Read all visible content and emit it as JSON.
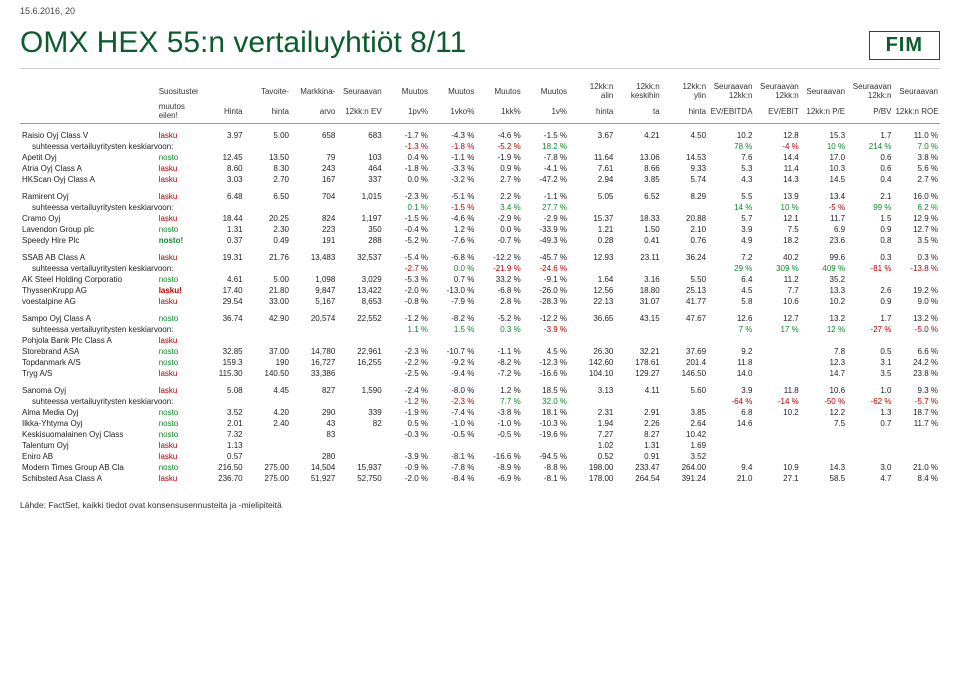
{
  "meta": {
    "date": "15.6.2016, 20"
  },
  "header": {
    "title": "OMX HEX 55:n vertailuyhtiöt 8/11",
    "logo": "FIM"
  },
  "footer": "Lähde: FactSet, kaikki tiedot ovat konsensusennusteita ja -mielipiteitä",
  "columns": {
    "row1": [
      "",
      "Suositusten",
      "",
      "Tavoite-",
      "Markkina-",
      "Seuraavan",
      "Muutos",
      "Muutos",
      "Muutos",
      "Muutos",
      "12kk:n\nalin",
      "12kk:n\nkeskihin",
      "12kk:n\nylin",
      "Seuraavan\n12kk:n",
      "Seuraavan\n12kk:n",
      "Seuraavan",
      "Seuraavan\n12kk:n",
      "Seuraavan"
    ],
    "row2": [
      "",
      "muutos\neilen!",
      "Hinta",
      "hinta",
      "arvo",
      "12kk:n EV",
      "1pv%",
      "1vko%",
      "1kk%",
      "1v%",
      "hinta",
      "ta",
      "hinta",
      "EV/EBITDA",
      "EV/EBIT",
      "12kk:n P/E",
      "P/BV",
      "12kk:n ROE"
    ]
  },
  "avg_label": "suhteessa vertailuyritysten keskiarvoon:",
  "groups": [
    {
      "rows": [
        {
          "name": "Raisio Oyj Class V",
          "rec": "lasku",
          "cls": "lasku",
          "v": [
            "3.97",
            "5.00",
            "658",
            "683",
            "-1.7 %",
            "-4.3 %",
            "-4.6 %",
            "-1.5 %",
            "3.67",
            "4.21",
            "4.50",
            "10.2",
            "12.8",
            "15.3",
            "1.7",
            "11.0 %"
          ]
        },
        {
          "avg": true,
          "v": [
            "",
            "",
            "",
            "",
            "-1.3 %",
            "-1.8 %",
            "-5.2 %",
            "18.2 %",
            "",
            "",
            "",
            "78 %",
            "-4 %",
            "10 %",
            "214 %",
            "7.0 %"
          ],
          "neg": [
            4,
            5,
            6,
            12
          ]
        },
        {
          "name": "Apetit Oyj",
          "rec": "nosto",
          "cls": "nosto",
          "v": [
            "12.45",
            "13.50",
            "79",
            "103",
            "0.4 %",
            "-1.1 %",
            "-1.9 %",
            "-7.8 %",
            "11.64",
            "13.06",
            "14.53",
            "7.6",
            "14.4",
            "17.0",
            "0.6",
            "3.8 %"
          ]
        },
        {
          "name": "Atria Oyj Class A",
          "rec": "lasku",
          "cls": "lasku",
          "v": [
            "8.60",
            "8.30",
            "243",
            "464",
            "-1.8 %",
            "-3.3 %",
            "0.9 %",
            "-4.1 %",
            "7.61",
            "8.66",
            "9.33",
            "5.3",
            "11.4",
            "10.3",
            "0.6",
            "5.6 %"
          ]
        },
        {
          "name": "HKScan Oyj Class A",
          "rec": "lasku",
          "cls": "lasku",
          "v": [
            "3.03",
            "2.70",
            "167",
            "337",
            "0.0 %",
            "-3.2 %",
            "2.7 %",
            "-47.2 %",
            "2.94",
            "3.85",
            "5.74",
            "4.3",
            "14.3",
            "14.5",
            "0.4",
            "2.7 %"
          ]
        }
      ]
    },
    {
      "rows": [
        {
          "name": "Ramirent Oyj",
          "rec": "lasku",
          "cls": "lasku",
          "v": [
            "6.48",
            "6.50",
            "704",
            "1,015",
            "-2.3 %",
            "-5.1 %",
            "2.2 %",
            "-1.1 %",
            "5.05",
            "6.52",
            "8.29",
            "5.5",
            "13.9",
            "13.4",
            "2.1",
            "16.0 %"
          ]
        },
        {
          "avg": true,
          "v": [
            "",
            "",
            "",
            "",
            "0.1 %",
            "-1.5 %",
            "3.4 %",
            "27.7 %",
            "",
            "",
            "",
            "14 %",
            "10 %",
            "-5 %",
            "99 %",
            "6.2 %"
          ],
          "neg": [
            5,
            13
          ]
        },
        {
          "name": "Cramo Oyj",
          "rec": "lasku",
          "cls": "lasku",
          "v": [
            "18.44",
            "20.25",
            "824",
            "1,197",
            "-1.5 %",
            "-4.6 %",
            "-2.9 %",
            "-2.9 %",
            "15.37",
            "18.33",
            "20.88",
            "5.7",
            "12.1",
            "11.7",
            "1.5",
            "12.9 %"
          ]
        },
        {
          "name": "Lavendon Group plc",
          "rec": "nosto",
          "cls": "nosto",
          "v": [
            "1.31",
            "2.30",
            "223",
            "350",
            "-0.4 %",
            "1.2 %",
            "0.0 %",
            "-33.9 %",
            "1.21",
            "1.50",
            "2.10",
            "3.9",
            "7.5",
            "6.9",
            "0.9",
            "12.7 %"
          ]
        },
        {
          "name": "Speedy Hire Plc",
          "rec": "nosto!",
          "cls": "nosto2",
          "v": [
            "0.37",
            "0.49",
            "191",
            "288",
            "-5.2 %",
            "-7.6 %",
            "-0.7 %",
            "-49.3 %",
            "0.28",
            "0.41",
            "0.76",
            "4.9",
            "18.2",
            "23.6",
            "0.8",
            "3.5 %"
          ]
        }
      ]
    },
    {
      "rows": [
        {
          "name": "SSAB AB Class A",
          "rec": "lasku",
          "cls": "lasku",
          "v": [
            "19.31",
            "21.76",
            "13,483",
            "32,537",
            "-5.4 %",
            "-6.8 %",
            "-12.2 %",
            "-45.7 %",
            "12.93",
            "23.11",
            "36.24",
            "7.2",
            "40.2",
            "99.6",
            "0.3",
            "0.3 %"
          ]
        },
        {
          "avg": true,
          "v": [
            "",
            "",
            "",
            "",
            "-2.7 %",
            "0.0 %",
            "-21.9 %",
            "-24.6 %",
            "",
            "",
            "",
            "29 %",
            "309 %",
            "409 %",
            "-81 %",
            "-13.8 %"
          ],
          "neg": [
            4,
            6,
            7,
            14,
            15
          ]
        },
        {
          "name": "AK Steel Holding Corporatio",
          "rec": "nosto",
          "cls": "nosto",
          "v": [
            "4.61",
            "5.00",
            "1,098",
            "3,029",
            "-5.3 %",
            "0.7 %",
            "33.2 %",
            "-9.1 %",
            "1.64",
            "3.16",
            "5.50",
            "6.4",
            "11.2",
            "35.2",
            "",
            ""
          ]
        },
        {
          "name": "ThyssenKrupp AG",
          "rec": "lasku!",
          "cls": "lasku2",
          "v": [
            "17.40",
            "21.80",
            "9,847",
            "13,422",
            "-2.0 %",
            "-13.0 %",
            "-6.8 %",
            "-26.0 %",
            "12.56",
            "18.80",
            "25.13",
            "4.5",
            "7.7",
            "13.3",
            "2.6",
            "19.2 %"
          ]
        },
        {
          "name": "voestalpine AG",
          "rec": "lasku",
          "cls": "lasku",
          "v": [
            "29.54",
            "33.00",
            "5,167",
            "8,653",
            "-0.8 %",
            "-7.9 %",
            "2.8 %",
            "-28.3 %",
            "22.13",
            "31.07",
            "41.77",
            "5.8",
            "10.6",
            "10.2",
            "0.9",
            "9.0 %"
          ]
        }
      ]
    },
    {
      "rows": [
        {
          "name": "Sampo Oyj Class A",
          "rec": "nosto",
          "cls": "nosto",
          "v": [
            "36.74",
            "42.90",
            "20,574",
            "22,552",
            "-1.2 %",
            "-8.2 %",
            "-5.2 %",
            "-12.2 %",
            "36.65",
            "43.15",
            "47.67",
            "12.6",
            "12.7",
            "13.2",
            "1.7",
            "13.2 %"
          ]
        },
        {
          "avg": true,
          "v": [
            "",
            "",
            "",
            "",
            "1.1 %",
            "1.5 %",
            "0.3 %",
            "-3.9 %",
            "",
            "",
            "",
            "7 %",
            "17 %",
            "12 %",
            "-27 %",
            "-5.0 %"
          ],
          "neg": [
            7,
            14,
            15
          ]
        },
        {
          "name": "Pohjola Bank Plc Class A",
          "rec": "lasku",
          "cls": "lasku",
          "v": [
            "",
            "",
            "",
            "",
            "",
            "",
            "",
            "",
            "",
            "",
            "",
            "",
            "",
            "",
            "",
            ""
          ]
        },
        {
          "name": "Storebrand ASA",
          "rec": "nosto",
          "cls": "nosto",
          "v": [
            "32.85",
            "37.00",
            "14,780",
            "22,961",
            "-2.3 %",
            "-10.7 %",
            "-1.1 %",
            "4.5 %",
            "26.30",
            "32.21",
            "37.69",
            "9.2",
            "",
            "7.8",
            "0.5",
            "6.6 %"
          ]
        },
        {
          "name": "Topdanmark A/S",
          "rec": "nosto",
          "cls": "nosto",
          "v": [
            "159.3",
            "190",
            "16,727",
            "16,255",
            "-2.2 %",
            "-9.2 %",
            "-8.2 %",
            "-12.3 %",
            "142.60",
            "178.61",
            "201.4",
            "11.8",
            "",
            "12.3",
            "3.1",
            "24.2 %"
          ]
        },
        {
          "name": "Tryg A/S",
          "rec": "lasku",
          "cls": "lasku",
          "v": [
            "115.30",
            "140.50",
            "33,386",
            "",
            "-2.5 %",
            "-9.4 %",
            "-7.2 %",
            "-16.6 %",
            "104.10",
            "129.27",
            "146.50",
            "14.0",
            "",
            "14.7",
            "3.5",
            "23.8 %"
          ]
        }
      ]
    },
    {
      "rows": [
        {
          "name": "Sanoma Oyj",
          "rec": "lasku",
          "cls": "lasku",
          "v": [
            "5.08",
            "4.45",
            "827",
            "1,590",
            "-2.4 %",
            "-8.0 %",
            "1.2 %",
            "18.5 %",
            "3.13",
            "4.11",
            "5.60",
            "3.9",
            "11.8",
            "10.6",
            "1.0",
            "9.3 %"
          ]
        },
        {
          "avg": true,
          "v": [
            "",
            "",
            "",
            "",
            "-1.2 %",
            "-2.3 %",
            "7.7 %",
            "32.0 %",
            "",
            "",
            "",
            "-64 %",
            "-14 %",
            "-50 %",
            "-62 %",
            "-5.7 %"
          ],
          "neg": [
            4,
            5,
            11,
            12,
            13,
            14,
            15
          ]
        },
        {
          "name": "Alma Media Oyj",
          "rec": "nosto",
          "cls": "nosto",
          "v": [
            "3.52",
            "4.20",
            "290",
            "339",
            "-1.9 %",
            "-7.4 %",
            "-3.8 %",
            "18.1 %",
            "2.31",
            "2.91",
            "3.85",
            "6.8",
            "10.2",
            "12.2",
            "1.3",
            "18.7 %"
          ]
        },
        {
          "name": "Ilkka-Yhtyma Oyj",
          "rec": "nosto",
          "cls": "nosto",
          "v": [
            "2.01",
            "2.40",
            "43",
            "82",
            "0.5 %",
            "-1.0 %",
            "-1.0 %",
            "-10.3 %",
            "1.94",
            "2.26",
            "2.64",
            "14.6",
            "",
            "7.5",
            "0.7",
            "11.7 %"
          ]
        },
        {
          "name": "Keskisuomalainen Oyj Class",
          "rec": "nosto",
          "cls": "nosto",
          "v": [
            "7.32",
            "",
            "83",
            "",
            "-0.3 %",
            "-0.5 %",
            "-0.5 %",
            "-19.6 %",
            "7.27",
            "8.27",
            "10.42",
            "",
            "",
            "",
            "",
            ""
          ]
        },
        {
          "name": "Talentum Oyj",
          "rec": "lasku",
          "cls": "lasku",
          "v": [
            "1.13",
            "",
            "",
            "",
            "",
            "",
            "",
            "",
            "1.02",
            "1.31",
            "1.69",
            "",
            "",
            "",
            "",
            ""
          ]
        },
        {
          "name": "Eniro AB",
          "rec": "lasku",
          "cls": "lasku",
          "v": [
            "0.57",
            "",
            "280",
            "",
            "-3.9 %",
            "-8.1 %",
            "-16.6 %",
            "-94.5 %",
            "0.52",
            "0.91",
            "3.52",
            "",
            "",
            "",
            "",
            ""
          ]
        },
        {
          "name": "Modern Times Group AB Cla",
          "rec": "nosto",
          "cls": "nosto",
          "v": [
            "216.50",
            "275.00",
            "14,504",
            "15,937",
            "-0.9 %",
            "-7.8 %",
            "-8.9 %",
            "-8.8 %",
            "198.00",
            "233.47",
            "264.00",
            "9.4",
            "10.9",
            "14.3",
            "3.0",
            "21.0 %"
          ]
        },
        {
          "name": "Schibsted Asa Class A",
          "rec": "lasku",
          "cls": "lasku",
          "v": [
            "236.70",
            "275.00",
            "51,927",
            "52,750",
            "-2.0 %",
            "-8.4 %",
            "-6.9 %",
            "-8.1 %",
            "178.00",
            "264.54",
            "391.24",
            "21.0",
            "27.1",
            "58.5",
            "4.7",
            "8.4 %"
          ]
        }
      ]
    }
  ]
}
